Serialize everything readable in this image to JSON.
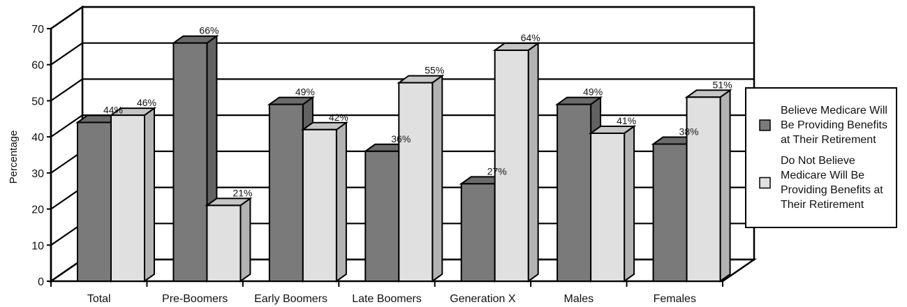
{
  "chart_data": {
    "type": "bar",
    "title": "",
    "xlabel": "",
    "ylabel": "Percentage",
    "ylim": [
      0,
      70
    ],
    "yticks": [
      0,
      10,
      20,
      30,
      40,
      50,
      60,
      70
    ],
    "grid": true,
    "legend_position": "right",
    "categories": [
      "Total",
      "Pre-Boomers",
      "Early Boomers",
      "Late Boomers",
      "Generation X",
      "Males",
      "Females"
    ],
    "series": [
      {
        "name": "Believe Medicare Will Be Providing Benefits at Their Retirement",
        "legend_lines": [
          "Believe Medicare Will",
          "Be Providing Benefits",
          "at Their Retirement"
        ],
        "color": "#7a7a7a",
        "values": [
          44,
          66,
          49,
          36,
          27,
          49,
          38
        ],
        "labels": [
          "44%",
          "66%",
          "49%",
          "36%",
          "27%",
          "49%",
          "38%"
        ]
      },
      {
        "name": "Do Not Believe Medicare Will Be Providing Benefits at Their Retirement",
        "legend_lines": [
          "Do Not Believe",
          "Medicare Will Be",
          "Providing Benefits at",
          "Their Retirement"
        ],
        "color": "#e0e0e0",
        "values": [
          46,
          21,
          42,
          55,
          64,
          41,
          51
        ],
        "labels": [
          "46%",
          "21%",
          "42%",
          "55%",
          "64%",
          "41%",
          "51%"
        ]
      }
    ]
  }
}
